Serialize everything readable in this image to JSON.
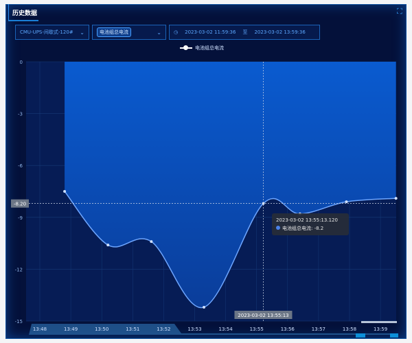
{
  "header": {
    "title": "历史数据",
    "fullscreen_icon": "fullscreen-icon"
  },
  "filters": {
    "device": "CMU-UPS-间歇式-120#",
    "metric_tag": "电池组总电流",
    "start": "2023-03-02 11:59:36",
    "separator": "至",
    "end": "2023-03-02 13:59:36"
  },
  "tooltip": {
    "time": "2023-03-02 13:55:13.120",
    "series": "电池组总电流",
    "value": "-8.2"
  },
  "axis_pointer": {
    "y_label": "-8.20",
    "x_label": "2023-03-02 13:55:13"
  },
  "chart_data": {
    "type": "area",
    "series": [
      {
        "name": "电池组总电流",
        "x": [
          "13:48:48",
          "13:50:12",
          "13:51:36",
          "13:53:18",
          "13:55:13",
          "13:56:24",
          "13:57:54",
          "13:59:30"
        ],
        "values": [
          -7.5,
          -10.6,
          -10.4,
          -14.2,
          -8.2,
          -8.8,
          -8.1,
          -7.9
        ]
      }
    ],
    "yticks": [
      "0",
      "-3",
      "-6",
      "-9",
      "-12",
      "-15"
    ],
    "ylim": [
      -15,
      0
    ],
    "xticks": [
      "13:48",
      "13:49",
      "13:50",
      "13:51",
      "13:52",
      "13:53",
      "13:54",
      "13:55",
      "13:56",
      "13:57",
      "13:58",
      "13:59"
    ],
    "line_color": "#6ea6ff",
    "fill_color": "#0a5bd0",
    "grid": true,
    "legend": "top"
  }
}
